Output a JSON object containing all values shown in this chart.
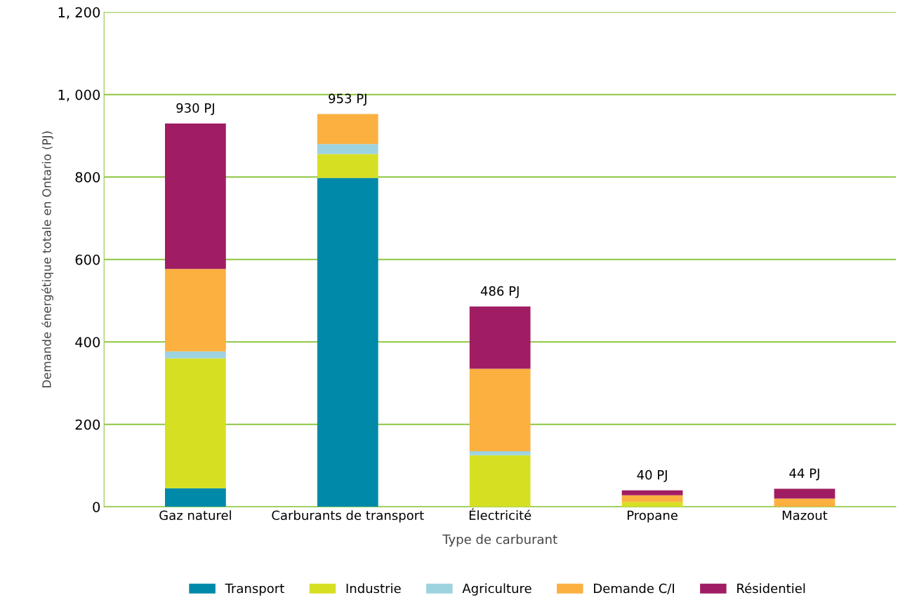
{
  "chart_data": {
    "type": "bar",
    "stacked": true,
    "xlabel": "Type de carburant",
    "ylabel": "Demande énergétique totale en Ontario (PJ)",
    "categories": [
      "Gaz naturel",
      "Carburants de transport",
      "Électricité",
      "Propane",
      "Mazout"
    ],
    "series": [
      {
        "name": "Transport",
        "color": "#0089a8",
        "values": [
          45,
          798,
          0,
          0,
          0
        ]
      },
      {
        "name": "Industrie",
        "color": "#d7df23",
        "values": [
          315,
          58,
          125,
          12,
          0
        ]
      },
      {
        "name": "Agriculture",
        "color": "#9dd3df",
        "values": [
          17,
          24,
          10,
          0,
          0
        ]
      },
      {
        "name": "Demande C/I",
        "color": "#fbb040",
        "values": [
          200,
          73,
          200,
          16,
          20
        ]
      },
      {
        "name": "Résidentiel",
        "color": "#a01d63",
        "values": [
          353,
          0,
          151,
          12,
          24
        ]
      }
    ],
    "totals": [
      "930 PJ",
      "953 PJ",
      "486 PJ",
      "40 PJ",
      "44 PJ"
    ],
    "ylim": [
      0,
      1200
    ],
    "yticks": [
      0,
      200,
      400,
      600,
      800,
      {
        "value": 1000,
        "label": "1, 000"
      },
      {
        "value": 1200,
        "label": "1, 200"
      }
    ],
    "grid": "y",
    "legend": "bottom"
  }
}
